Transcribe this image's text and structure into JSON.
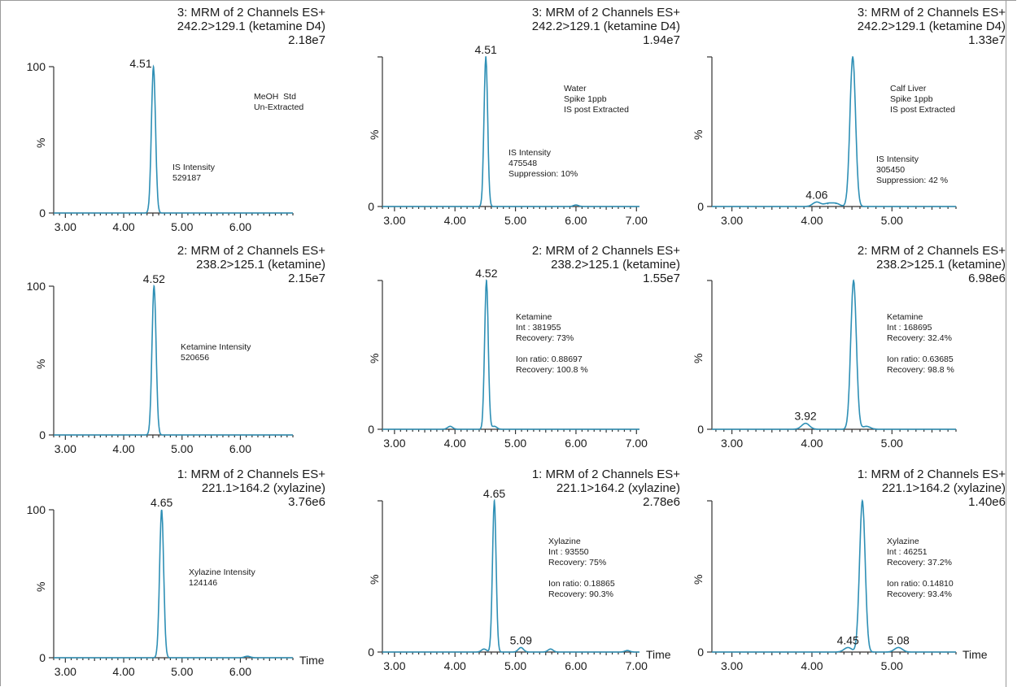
{
  "chart_data": [
    {
      "type": "line",
      "title_lines": [
        "3: MRM of 2 Channels ES+",
        "242.2>129.1 (ketamine D4)",
        "2.18e7"
      ],
      "ylabel": "%",
      "y_top_label": "100",
      "y_zero_label": "0",
      "xlabel": "",
      "x_ticks": [
        3.0,
        4.0,
        5.0,
        6.0
      ],
      "xlim": [
        2.8,
        6.9
      ],
      "ylim": [
        0,
        100
      ],
      "peaks": [
        {
          "rt": 4.51,
          "label": "4.51",
          "height": 100,
          "labeled": true
        }
      ],
      "note_lines": [
        "MeOH  Std",
        "Un-Extracted"
      ],
      "note2_lines": [
        "IS Intensity",
        "529187"
      ]
    },
    {
      "type": "line",
      "title_lines": [
        "3: MRM of 2 Channels ES+",
        "242.2>129.1 (ketamine D4)",
        "1.94e7"
      ],
      "ylabel": "%",
      "y_top_label": "",
      "y_zero_label": "0",
      "xlabel": "",
      "x_ticks": [
        3.0,
        4.0,
        5.0,
        6.0,
        7.0
      ],
      "xlim": [
        2.8,
        7.05
      ],
      "ylim": [
        0,
        100
      ],
      "peaks": [
        {
          "rt": 4.51,
          "label": "4.51",
          "height": 100,
          "labeled": true
        },
        {
          "rt": 6.0,
          "height": 1,
          "labeled": false
        }
      ],
      "note_lines": [
        "Water",
        "Spike 1ppb",
        "IS post Extracted"
      ],
      "note2_lines": [
        "IS Intensity",
        "475548",
        "Suppression: 10%"
      ]
    },
    {
      "type": "line",
      "title_lines": [
        "3: MRM of 2 Channels ES+",
        "242.2>129.1 (ketamine D4)",
        "1.33e7"
      ],
      "ylabel": "%",
      "y_top_label": "",
      "y_zero_label": "0",
      "xlabel": "",
      "x_ticks": [
        3.0,
        4.0,
        5.0
      ],
      "xlim": [
        2.75,
        5.8
      ],
      "ylim": [
        0,
        100
      ],
      "peaks": [
        {
          "rt": 4.06,
          "label": "4.06",
          "height": 3,
          "labeled": true
        },
        {
          "rt": 4.2,
          "height": 2,
          "labeled": false
        },
        {
          "rt": 4.3,
          "height": 2,
          "labeled": false
        },
        {
          "rt": 4.51,
          "height": 100,
          "labeled": false
        }
      ],
      "note_lines": [
        "Calf Liver",
        "Spike 1ppb",
        "IS post Extracted"
      ],
      "note2_lines": [
        "IS Intensity",
        "305450",
        "Suppression: 42 %"
      ]
    },
    {
      "type": "line",
      "title_lines": [
        "2: MRM of 2 Channels ES+",
        "238.2>125.1 (ketamine)",
        "2.15e7"
      ],
      "ylabel": "%",
      "y_top_label": "100",
      "y_zero_label": "0",
      "xlabel": "",
      "x_ticks": [
        3.0,
        4.0,
        5.0,
        6.0
      ],
      "xlim": [
        2.8,
        6.9
      ],
      "ylim": [
        0,
        100
      ],
      "peaks": [
        {
          "rt": 4.52,
          "label": "4.52",
          "height": 100,
          "labeled": true
        }
      ],
      "note_lines": [
        "Ketamine Intensity",
        "520656"
      ],
      "note2_lines": []
    },
    {
      "type": "line",
      "title_lines": [
        "2: MRM of 2 Channels ES+",
        "238.2>125.1 (ketamine)",
        "1.55e7"
      ],
      "ylabel": "%",
      "y_top_label": "",
      "y_zero_label": "0",
      "xlabel": "",
      "x_ticks": [
        3.0,
        4.0,
        5.0,
        6.0,
        7.0
      ],
      "xlim": [
        2.8,
        7.05
      ],
      "ylim": [
        0,
        100
      ],
      "peaks": [
        {
          "rt": 3.92,
          "height": 2,
          "labeled": false
        },
        {
          "rt": 4.52,
          "label": "4.52",
          "height": 100,
          "labeled": true
        },
        {
          "rt": 4.65,
          "height": 2,
          "labeled": false
        }
      ],
      "note_lines": [
        "Ketamine",
        "Int : 381955",
        "Recovery: 73%",
        "",
        "Ion ratio: 0.88697",
        "Recovery: 100.8 %"
      ],
      "note2_lines": []
    },
    {
      "type": "line",
      "title_lines": [
        "2: MRM of 2 Channels ES+",
        "238.2>125.1 (ketamine)",
        "6.98e6"
      ],
      "ylabel": "%",
      "y_top_label": "",
      "y_zero_label": "0",
      "xlabel": "",
      "x_ticks": [
        3.0,
        4.0,
        5.0
      ],
      "xlim": [
        2.75,
        5.8
      ],
      "ylim": [
        0,
        100
      ],
      "peaks": [
        {
          "rt": 3.92,
          "label": "3.92",
          "height": 4,
          "labeled": true
        },
        {
          "rt": 4.52,
          "height": 100,
          "labeled": false
        },
        {
          "rt": 4.68,
          "height": 2,
          "labeled": false
        }
      ],
      "note_lines": [
        "Ketamine",
        "Int : 168695",
        "Recovery: 32.4%",
        "",
        "Ion ratio: 0.63685",
        "Recovery: 98.8 %"
      ],
      "note2_lines": []
    },
    {
      "type": "line",
      "title_lines": [
        "1: MRM of 2 Channels ES+",
        "221.1>164.2 (xylazine)",
        "3.76e6"
      ],
      "ylabel": "%",
      "y_top_label": "100",
      "y_zero_label": "0",
      "xlabel": "Time",
      "x_ticks": [
        3.0,
        4.0,
        5.0,
        6.0
      ],
      "xlim": [
        2.8,
        6.9
      ],
      "ylim": [
        0,
        100
      ],
      "peaks": [
        {
          "rt": 4.65,
          "label": "4.65",
          "height": 100,
          "labeled": true
        },
        {
          "rt": 6.12,
          "height": 1,
          "labeled": false
        }
      ],
      "note_lines": [
        "Xylazine Intensity",
        "124146"
      ],
      "note2_lines": []
    },
    {
      "type": "line",
      "title_lines": [
        "1: MRM of 2 Channels ES+",
        "221.1>164.2 (xylazine)",
        "2.78e6"
      ],
      "ylabel": "%",
      "y_top_label": "",
      "y_zero_label": "0",
      "xlabel": "Time",
      "x_ticks": [
        3.0,
        4.0,
        5.0,
        6.0,
        7.0
      ],
      "xlim": [
        2.8,
        7.05
      ],
      "ylim": [
        0,
        100
      ],
      "peaks": [
        {
          "rt": 4.48,
          "height": 2,
          "labeled": false
        },
        {
          "rt": 4.65,
          "label": "4.65",
          "height": 100,
          "labeled": true
        },
        {
          "rt": 5.09,
          "label": "5.09",
          "height": 3,
          "labeled": true
        },
        {
          "rt": 5.58,
          "height": 2,
          "labeled": false
        },
        {
          "rt": 6.85,
          "height": 1,
          "labeled": false
        }
      ],
      "note_lines": [
        "Xylazine",
        "Int : 93550",
        "Recovery: 75%",
        "",
        "Ion ratio: 0.18865",
        "Recovery: 90.3%"
      ],
      "note2_lines": []
    },
    {
      "type": "line",
      "title_lines": [
        "1: MRM of 2 Channels ES+",
        "221.1>164.2 (xylazine)",
        "1.40e6"
      ],
      "ylabel": "%",
      "y_top_label": "",
      "y_zero_label": "0",
      "xlabel": "Time",
      "x_ticks": [
        3.0,
        4.0,
        5.0
      ],
      "xlim": [
        2.75,
        5.8
      ],
      "ylim": [
        0,
        100
      ],
      "peaks": [
        {
          "rt": 4.45,
          "label": "4.45",
          "height": 3,
          "labeled": true
        },
        {
          "rt": 4.63,
          "height": 100,
          "labeled": false
        },
        {
          "rt": 5.08,
          "label": "5.08",
          "height": 3,
          "labeled": true
        }
      ],
      "note_lines": [
        "Xylazine",
        "Int : 46251",
        "Recovery: 37.2%",
        "",
        "Ion ratio: 0.14810",
        "Recovery: 93.4%"
      ],
      "note2_lines": []
    }
  ],
  "style": {
    "trace_color": "#2e8fb5",
    "axis_color": "#333333",
    "background": "#ffffff"
  }
}
